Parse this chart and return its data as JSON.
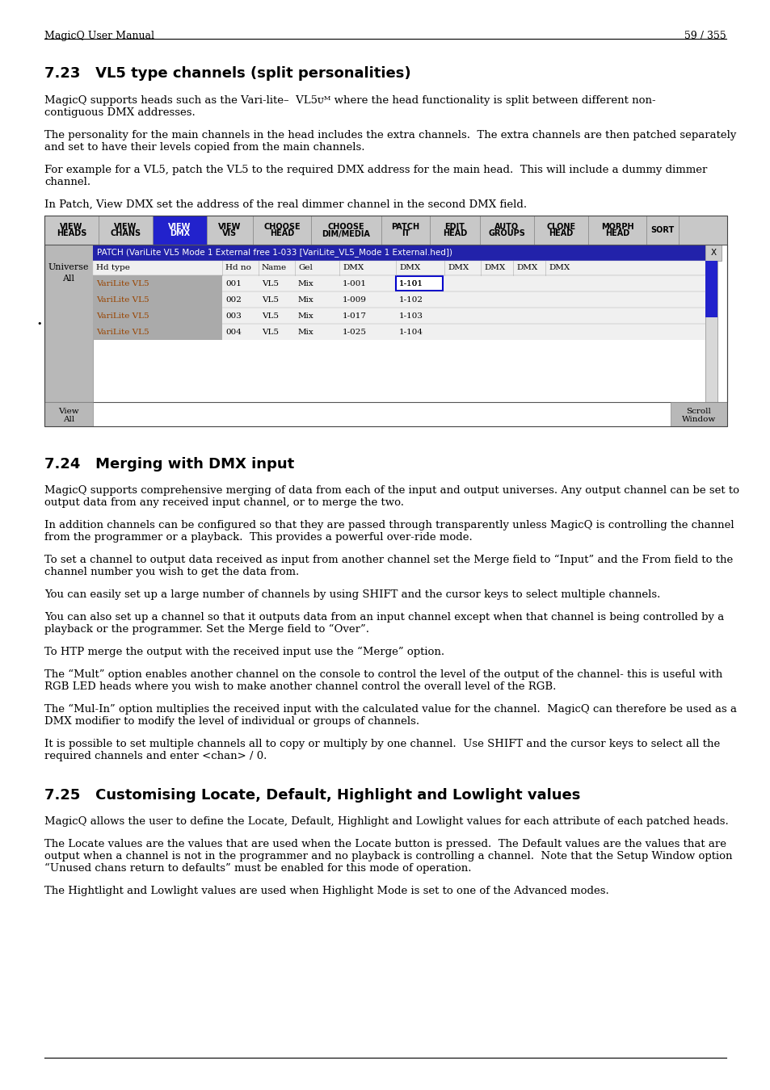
{
  "page_header_left": "MagicQ User Manual",
  "page_header_right": "59 / 355",
  "section1_title": "7.23   VL5 type channels (split personalities)",
  "section2_title": "7.24   Merging with DMX input",
  "section3_title": "7.25   Customising Locate, Default, Highlight and Lowlight values",
  "s1p1l1": "MagicQ supports heads such as the Vari-lite–  VL5ᴜᴹ where the head functionality is split between different non-",
  "s1p1l2": "contiguous DMX addresses.",
  "s1p2l1": "The personality for the main channels in the head includes the extra channels.  The extra channels are then patched separately",
  "s1p2l2": "and set to have their levels copied from the main channels.",
  "s1p3l1": "For example for a VL5, patch the VL5 to the required DMX address for the main head.  This will include a dummy dimmer",
  "s1p3l2": "channel.",
  "s1p4": "In Patch, View DMX set the address of the real dimmer channel in the second DMX field.",
  "table_header_buttons": [
    "VIEW\nHEADS",
    "VIEW\nCHANS",
    "VIEW\nDMX",
    "VIEW\nVIS",
    "CHOOSE\nHEAD",
    "CHOOSE\nDIM/MEDIA",
    "PATCH\nIT",
    "EDIT\nHEAD",
    "AUTO\nGROUPS",
    "CLONE\nHEAD",
    "MORPH\nHEAD",
    "SORT"
  ],
  "table_active_btn_idx": 2,
  "table_title": "PATCH (VariLite VL5 Mode 1 External free 1-033 [VariLite_VL5_Mode 1 External.hed])",
  "table_col_headers": [
    "Hd type",
    "Hd no",
    "Name",
    "Gel",
    "DMX",
    "DMX",
    "DMX",
    "DMX",
    "DMX",
    "DMX"
  ],
  "table_rows": [
    [
      "VariLite VL5",
      "001",
      "VL5",
      "Mix",
      "1-001",
      "1-101",
      "",
      "",
      "",
      ""
    ],
    [
      "VariLite VL5",
      "002",
      "VL5",
      "Mix",
      "1-009",
      "1-102",
      "",
      "",
      "",
      ""
    ],
    [
      "VariLite VL5",
      "003",
      "VL5",
      "Mix",
      "1-017",
      "1-103",
      "",
      "",
      "",
      ""
    ],
    [
      "VariLite VL5",
      "004",
      "VL5",
      "Mix",
      "1-025",
      "1-104",
      "",
      "",
      "",
      ""
    ]
  ],
  "s2p1l1": "MagicQ supports comprehensive merging of data from each of the input and output universes. Any output channel can be set to",
  "s2p1l2": "output data from any received input channel, or to merge the two.",
  "s2p2l1": "In addition channels can be configured so that they are passed through transparently unless MagicQ is controlling the channel",
  "s2p2l2": "from the programmer or a playback.  This provides a powerful over-ride mode.",
  "s2p3l1": "To set a channel to output data received as input from another channel set the Merge field to “Input” and the From field to the",
  "s2p3l2": "channel number you wish to get the data from.",
  "s2p4": "You can easily set up a large number of channels by using SHIFT and the cursor keys to select multiple channels.",
  "s2p5l1": "You can also set up a channel so that it outputs data from an input channel except when that channel is being controlled by a",
  "s2p5l2": "playback or the programmer. Set the Merge field to “Over”.",
  "s2p6": "To HTP merge the output with the received input use the “Merge” option.",
  "s2p7l1": "The “Mult” option enables another channel on the console to control the level of the output of the channel- this is useful with",
  "s2p7l2": "RGB LED heads where you wish to make another channel control the overall level of the RGB.",
  "s2p8l1": "The “Mul-In” option multiplies the received input with the calculated value for the channel.  MagicQ can therefore be used as a",
  "s2p8l2": "DMX modifier to modify the level of individual or groups of channels.",
  "s2p9l1": "It is possible to set multiple channels all to copy or multiply by one channel.  Use SHIFT and the cursor keys to select all the",
  "s2p9l2": "required channels and enter <chan> / 0.",
  "s3p1": "MagicQ allows the user to define the Locate, Default, Highlight and Lowlight values for each attribute of each patched heads.",
  "s3p2l1": "The Locate values are the values that are used when the Locate button is pressed.  The Default values are the values that are",
  "s3p2l2": "output when a channel is not in the programmer and no playback is controlling a channel.  Note that the Setup Window option",
  "s3p2l3": "“Unused chans return to defaults” must be enabled for this mode of operation.",
  "s3p3": "The Hightlight and Lowlight values are used when Highlight Mode is set to one of the Advanced modes.",
  "bg_color": "#ffffff",
  "text_color": "#000000",
  "table_header_bg": "#c8c8c8",
  "table_active_btn_bg": "#2222cc",
  "table_active_btn_fg": "#ffffff",
  "table_title_bg": "#2222aa",
  "table_title_fg": "#ffffff",
  "table_row_dark_bg": "#aaaaaa",
  "table_row_light_bg": "#e0e0e0",
  "table_row_white_bg": "#f0f0f0",
  "left_panel_bg": "#b8b8b8",
  "scrollbar_color": "#2222cc",
  "col_hdr_text": "#000000",
  "row_name_color": "#994400",
  "selected_cell_border": "#0000cc"
}
